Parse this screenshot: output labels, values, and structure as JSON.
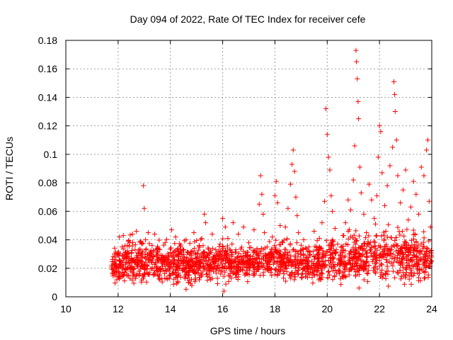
{
  "chart_data": {
    "type": "scatter",
    "title": "Day 094 of 2022, Rate Of TEC Index for receiver cefe",
    "xlabel": "GPS time / hours",
    "ylabel": "ROTI / TECUs",
    "xlim": [
      10,
      24
    ],
    "ylim": [
      0,
      0.18
    ],
    "x_ticks": [
      10,
      12,
      14,
      16,
      18,
      20,
      22,
      24
    ],
    "y_ticks": [
      0,
      0.02,
      0.04,
      0.06,
      0.08,
      0.1,
      0.12,
      0.14,
      0.16,
      0.18
    ],
    "x_tick_labels": [
      "10",
      "12",
      "14",
      "16",
      "18",
      "20",
      "22",
      "24"
    ],
    "y_tick_labels": [
      "0",
      "0.02",
      "0.04",
      "0.06",
      "0.08",
      "0.1",
      "0.12",
      "0.14",
      "0.16",
      "0.18"
    ],
    "grid": true,
    "marker": "+",
    "color": "#ff0000",
    "series": [
      {
        "name": "ROTI",
        "points": [
          [
            11.75,
            0.021
          ],
          [
            11.8,
            0.016
          ],
          [
            11.85,
            0.025
          ],
          [
            11.9,
            0.018
          ],
          [
            11.95,
            0.012
          ],
          [
            12.0,
            0.029
          ],
          [
            12.05,
            0.042
          ],
          [
            12.1,
            0.022
          ],
          [
            12.15,
            0.035
          ],
          [
            12.2,
            0.043
          ],
          [
            12.25,
            0.019
          ],
          [
            12.3,
            0.027
          ],
          [
            12.35,
            0.031
          ],
          [
            12.4,
            0.015
          ],
          [
            12.45,
            0.038
          ],
          [
            12.5,
            0.024
          ],
          [
            12.55,
            0.044
          ],
          [
            12.6,
            0.02
          ],
          [
            12.65,
            0.033
          ],
          [
            12.7,
            0.046
          ],
          [
            12.75,
            0.026
          ],
          [
            12.8,
            0.018
          ],
          [
            12.85,
            0.039
          ],
          [
            12.9,
            0.03
          ],
          [
            12.97,
            0.078
          ],
          [
            13.0,
            0.062
          ],
          [
            13.05,
            0.04
          ],
          [
            13.1,
            0.022
          ],
          [
            13.15,
            0.045
          ],
          [
            13.2,
            0.017
          ],
          [
            13.3,
            0.036
          ],
          [
            13.35,
            0.028
          ],
          [
            13.4,
            0.044
          ],
          [
            13.45,
            0.021
          ],
          [
            13.5,
            0.034
          ],
          [
            13.6,
            0.012
          ],
          [
            13.7,
            0.025
          ],
          [
            13.8,
            0.038
          ],
          [
            13.9,
            0.019
          ],
          [
            14.0,
            0.031
          ],
          [
            14.05,
            0.047
          ],
          [
            14.1,
            0.023
          ],
          [
            14.2,
            0.042
          ],
          [
            14.3,
            0.015
          ],
          [
            14.4,
            0.033
          ],
          [
            14.5,
            0.026
          ],
          [
            14.6,
            0.04
          ],
          [
            14.7,
            0.01
          ],
          [
            14.8,
            0.029
          ],
          [
            14.9,
            0.045
          ],
          [
            15.0,
            0.021
          ],
          [
            15.1,
            0.036
          ],
          [
            15.2,
            0.041
          ],
          [
            15.3,
            0.058
          ],
          [
            15.35,
            0.052
          ],
          [
            15.4,
            0.03
          ],
          [
            15.5,
            0.018
          ],
          [
            15.6,
            0.044
          ],
          [
            15.7,
            0.027
          ],
          [
            15.8,
            0.013
          ],
          [
            15.9,
            0.037
          ],
          [
            16.0,
            0.055
          ],
          [
            16.05,
            0.004
          ],
          [
            16.1,
            0.049
          ],
          [
            16.2,
            0.041
          ],
          [
            16.3,
            0.024
          ],
          [
            16.4,
            0.052
          ],
          [
            16.5,
            0.033
          ],
          [
            16.6,
            0.044
          ],
          [
            16.7,
            0.019
          ],
          [
            16.8,
            0.049
          ],
          [
            16.9,
            0.028
          ],
          [
            17.0,
            0.038
          ],
          [
            17.1,
            0.022
          ],
          [
            17.2,
            0.047
          ],
          [
            17.3,
            0.031
          ],
          [
            17.4,
            0.065
          ],
          [
            17.45,
            0.085
          ],
          [
            17.5,
            0.072
          ],
          [
            17.55,
            0.058
          ],
          [
            17.6,
            0.045
          ],
          [
            17.7,
            0.035
          ],
          [
            17.8,
            0.026
          ],
          [
            17.9,
            0.042
          ],
          [
            18.0,
            0.071
          ],
          [
            18.05,
            0.081
          ],
          [
            18.1,
            0.066
          ],
          [
            18.2,
            0.05
          ],
          [
            18.3,
            0.038
          ],
          [
            18.4,
            0.049
          ],
          [
            18.5,
            0.062
          ],
          [
            18.6,
            0.079
          ],
          [
            18.65,
            0.093
          ],
          [
            18.7,
            0.103
          ],
          [
            18.75,
            0.088
          ],
          [
            18.8,
            0.07
          ],
          [
            18.85,
            0.057
          ],
          [
            18.9,
            0.045
          ],
          [
            19.0,
            0.032
          ],
          [
            19.1,
            0.04
          ],
          [
            19.2,
            0.028
          ],
          [
            19.3,
            0.035
          ],
          [
            19.4,
            0.022
          ],
          [
            19.5,
            0.046
          ],
          [
            19.6,
            0.033
          ],
          [
            19.7,
            0.041
          ],
          [
            19.8,
            0.052
          ],
          [
            19.9,
            0.067
          ],
          [
            19.95,
            0.132
          ],
          [
            20.0,
            0.114
          ],
          [
            20.05,
            0.098
          ],
          [
            20.1,
            0.089
          ],
          [
            20.15,
            0.071
          ],
          [
            20.2,
            0.06
          ],
          [
            20.3,
            0.048
          ],
          [
            20.4,
            0.037
          ],
          [
            20.5,
            0.029
          ],
          [
            20.6,
            0.043
          ],
          [
            20.7,
            0.052
          ],
          [
            20.8,
            0.068
          ],
          [
            20.9,
            0.061
          ],
          [
            21.0,
            0.082
          ],
          [
            21.05,
            0.106
          ],
          [
            21.1,
            0.173
          ],
          [
            21.12,
            0.165
          ],
          [
            21.15,
            0.153
          ],
          [
            21.18,
            0.137
          ],
          [
            21.2,
            0.125
          ],
          [
            21.25,
            0.091
          ],
          [
            21.3,
            0.073
          ],
          [
            21.4,
            0.058
          ],
          [
            21.5,
            0.045
          ],
          [
            21.6,
            0.079
          ],
          [
            21.7,
            0.068
          ],
          [
            21.8,
            0.055
          ],
          [
            21.9,
            0.071
          ],
          [
            21.95,
            0.098
          ],
          [
            22.0,
            0.12
          ],
          [
            22.05,
            0.116
          ],
          [
            22.1,
            0.087
          ],
          [
            22.2,
            0.064
          ],
          [
            22.3,
            0.078
          ],
          [
            22.4,
            0.092
          ],
          [
            22.5,
            0.105
          ],
          [
            22.55,
            0.151
          ],
          [
            22.58,
            0.142
          ],
          [
            22.6,
            0.13
          ],
          [
            22.65,
            0.11
          ],
          [
            22.7,
            0.085
          ],
          [
            22.8,
            0.066
          ],
          [
            22.9,
            0.075
          ],
          [
            23.0,
            0.089
          ],
          [
            23.1,
            0.054
          ],
          [
            23.2,
            0.063
          ],
          [
            23.3,
            0.081
          ],
          [
            23.4,
            0.072
          ],
          [
            23.5,
            0.058
          ],
          [
            23.6,
            0.091
          ],
          [
            23.7,
            0.085
          ],
          [
            23.8,
            0.103
          ],
          [
            23.85,
            0.11
          ],
          [
            23.9,
            0.067
          ],
          [
            23.95,
            0.049
          ],
          [
            24.0,
            0.028
          ]
        ],
        "band_profile": [
          [
            11.75,
            0.008,
            0.031
          ],
          [
            12.0,
            0.008,
            0.036
          ],
          [
            12.5,
            0.009,
            0.041
          ],
          [
            13.0,
            0.008,
            0.04
          ],
          [
            13.5,
            0.009,
            0.039
          ],
          [
            14.0,
            0.008,
            0.038
          ],
          [
            14.5,
            0.006,
            0.037
          ],
          [
            15.0,
            0.008,
            0.04
          ],
          [
            15.5,
            0.009,
            0.038
          ],
          [
            16.0,
            0.008,
            0.039
          ],
          [
            16.5,
            0.01,
            0.036
          ],
          [
            17.0,
            0.01,
            0.036
          ],
          [
            17.5,
            0.011,
            0.038
          ],
          [
            18.0,
            0.01,
            0.04
          ],
          [
            18.5,
            0.011,
            0.039
          ],
          [
            19.0,
            0.009,
            0.036
          ],
          [
            19.5,
            0.009,
            0.038
          ],
          [
            20.0,
            0.008,
            0.04
          ],
          [
            20.5,
            0.008,
            0.042
          ],
          [
            21.0,
            0.006,
            0.045
          ],
          [
            21.5,
            0.008,
            0.046
          ],
          [
            22.0,
            0.007,
            0.048
          ],
          [
            22.5,
            0.008,
            0.05
          ],
          [
            23.0,
            0.007,
            0.048
          ],
          [
            23.5,
            0.008,
            0.046
          ],
          [
            24.0,
            0.008,
            0.04
          ]
        ]
      }
    ]
  }
}
